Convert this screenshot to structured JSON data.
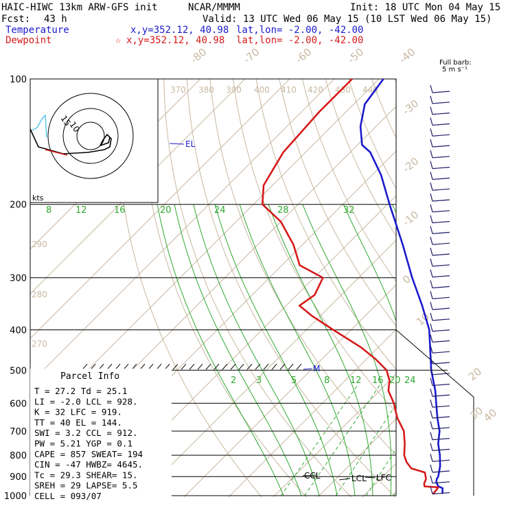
{
  "header": {
    "model": "HAIC-HIWC 13km ARW-GFS init",
    "org": "NCAR/MMMM",
    "init": "Init: 18 UTC Mon 04 May 15",
    "fcst_label": "Fcst:",
    "fcst_value": "43 h",
    "valid": "Valid: 13 UTC Wed 06 May 15 (10 LST Wed 06 May 15)",
    "temperature_label": "Temperature",
    "dewpoint_label": "Dewpoint",
    "temp_xy": "x,y=352.12, 40.98",
    "dew_xy": "x,y=352.12, 40.98",
    "dew_marker": "☆",
    "temp_latlon": "lat,lon= -2.00, -42.00",
    "dew_latlon": "lat,lon= -2.00, -42.00"
  },
  "barb_legend": {
    "line1": "Full barb:",
    "line2": "5 m s⁻¹"
  },
  "hodograph": {
    "unit": "kts",
    "ring_labels": [
      "15",
      "10"
    ]
  },
  "parcel": {
    "title": "Parcel Info",
    "lines": [
      "T  =   27.2 Td =  25.1",
      "LI =   -2.0 LCL =  928.",
      "K  =     32 LFC =  919.",
      "TT =     40 EL  =  144.",
      "SWI =   3.2 CCL =  912.",
      "PW =   5.21 YGP =   0.1",
      "CAPE =  857 SWEAT=  194",
      "CIN =   -47 HWBZ= 4645.",
      "Tc =   29.3 SHEAR=  15.",
      "SREH =   29 LAPSE=  5.5",
      "CELL = 093/07"
    ]
  },
  "chart_data": {
    "type": "line",
    "yscale": "log",
    "ylim": [
      1000,
      100
    ],
    "pressure_levels": [
      100,
      200,
      300,
      400,
      500,
      600,
      700,
      800,
      900,
      1000
    ],
    "isotherm_labels": [
      "-80",
      "-70",
      "-60",
      "-50",
      "-40",
      "-30",
      "-20",
      "-10",
      "0",
      "10",
      "20",
      "30",
      "40"
    ],
    "theta_labels": [
      "370",
      "380",
      "390",
      "400",
      "410",
      "420",
      "430",
      "440",
      "290",
      "280",
      "270"
    ],
    "mixing_ratio_labels_upper": [
      "8",
      "12",
      "16",
      "20",
      "24",
      "28",
      "32"
    ],
    "mixing_ratio_labels_lower": [
      "2",
      "3",
      "5",
      "8",
      "12",
      "16",
      "20",
      "24"
    ],
    "level_labels": [
      "EL",
      "M",
      "CCL",
      "LCL",
      "LFC"
    ],
    "series": [
      {
        "name": "Temperature",
        "color": "#1a1acc",
        "points": [
          [
            990,
            27.2
          ],
          [
            960,
            26.0
          ],
          [
            950,
            24.6
          ],
          [
            928,
            23.2
          ],
          [
            912,
            22.6
          ],
          [
            900,
            22.4
          ],
          [
            850,
            20.5
          ],
          [
            800,
            18.0
          ],
          [
            750,
            15.0
          ],
          [
            700,
            12.5
          ],
          [
            650,
            9.0
          ],
          [
            600,
            5.5
          ],
          [
            560,
            2.5
          ],
          [
            500,
            -3.0
          ],
          [
            450,
            -7.5
          ],
          [
            400,
            -12.5
          ],
          [
            350,
            -19.5
          ],
          [
            300,
            -28.0
          ],
          [
            250,
            -37.5
          ],
          [
            200,
            -49.5
          ],
          [
            170,
            -58.0
          ],
          [
            150,
            -65.5
          ],
          [
            144,
            -69.0
          ],
          [
            130,
            -73.5
          ],
          [
            115,
            -77.5
          ],
          [
            100,
            -79.0
          ]
        ]
      },
      {
        "name": "Dewpoint",
        "color": "#d61a1a",
        "points": [
          [
            990,
            25.1
          ],
          [
            970,
            25.0
          ],
          [
            955,
            24.8
          ],
          [
            950,
            21.5
          ],
          [
            935,
            20.8
          ],
          [
            912,
            20.2
          ],
          [
            880,
            18.5
          ],
          [
            860,
            14.5
          ],
          [
            830,
            12.0
          ],
          [
            800,
            10.0
          ],
          [
            750,
            7.5
          ],
          [
            700,
            4.5
          ],
          [
            650,
            0.0
          ],
          [
            600,
            -4.0
          ],
          [
            560,
            -8.0
          ],
          [
            530,
            -10.0
          ],
          [
            500,
            -13.0
          ],
          [
            470,
            -18.0
          ],
          [
            440,
            -24.0
          ],
          [
            400,
            -34.0
          ],
          [
            370,
            -42.0
          ],
          [
            350,
            -47.0
          ],
          [
            330,
            -46.0
          ],
          [
            300,
            -48.0
          ],
          [
            280,
            -56.0
          ],
          [
            250,
            -62.0
          ],
          [
            220,
            -70.0
          ],
          [
            200,
            -78.0
          ],
          [
            180,
            -82.0
          ],
          [
            150,
            -85.0
          ],
          [
            120,
            -86.0
          ],
          [
            100,
            -86.0
          ]
        ]
      }
    ]
  }
}
